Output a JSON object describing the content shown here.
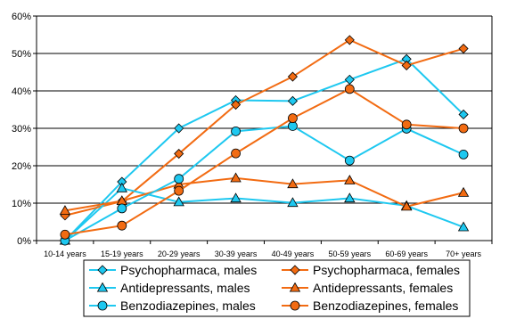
{
  "chart_data": {
    "type": "line",
    "title": "",
    "xlabel": "",
    "ylabel": "",
    "categories": [
      "10-14 years",
      "15-19 years",
      "20-29 years",
      "30-39 years",
      "40-49 years",
      "50-59 years",
      "60-69 years",
      "70+ years"
    ],
    "y_ticks": [
      "0%",
      "10%",
      "20%",
      "30%",
      "40%",
      "50%",
      "60%"
    ],
    "ylim": [
      0,
      60
    ],
    "y_unit": "%",
    "grid": true,
    "legend_position": "bottom",
    "series": [
      {
        "name": "Psychopharmaca, males",
        "color": "#1ec8f0",
        "marker": "diamond",
        "values": [
          0,
          15.7,
          30.0,
          37.5,
          37.3,
          43.0,
          48.5,
          33.7
        ]
      },
      {
        "name": "Psychopharmaca, females",
        "color": "#f26b12",
        "marker": "diamond",
        "values": [
          6.7,
          10.5,
          23.2,
          36.3,
          43.8,
          53.6,
          46.8,
          51.3
        ]
      },
      {
        "name": "Antidepressants, males",
        "color": "#1ec8f0",
        "marker": "triangle",
        "values": [
          0,
          14.0,
          10.3,
          11.3,
          10.1,
          11.3,
          9.3,
          3.6
        ]
      },
      {
        "name": "Antidepressants, females",
        "color": "#f26b12",
        "marker": "triangle",
        "values": [
          8.0,
          10.6,
          15.0,
          16.7,
          15.1,
          16.1,
          9.1,
          12.8
        ]
      },
      {
        "name": "Benzodiazepines, males",
        "color": "#1ec8f0",
        "marker": "circle",
        "values": [
          0,
          8.6,
          16.5,
          29.2,
          30.6,
          21.4,
          29.9,
          23.0
        ]
      },
      {
        "name": "Benzodiazepines, females",
        "color": "#f26b12",
        "marker": "circle",
        "values": [
          1.6,
          4.0,
          13.3,
          23.3,
          32.7,
          40.5,
          31.0,
          30.0
        ]
      }
    ]
  }
}
